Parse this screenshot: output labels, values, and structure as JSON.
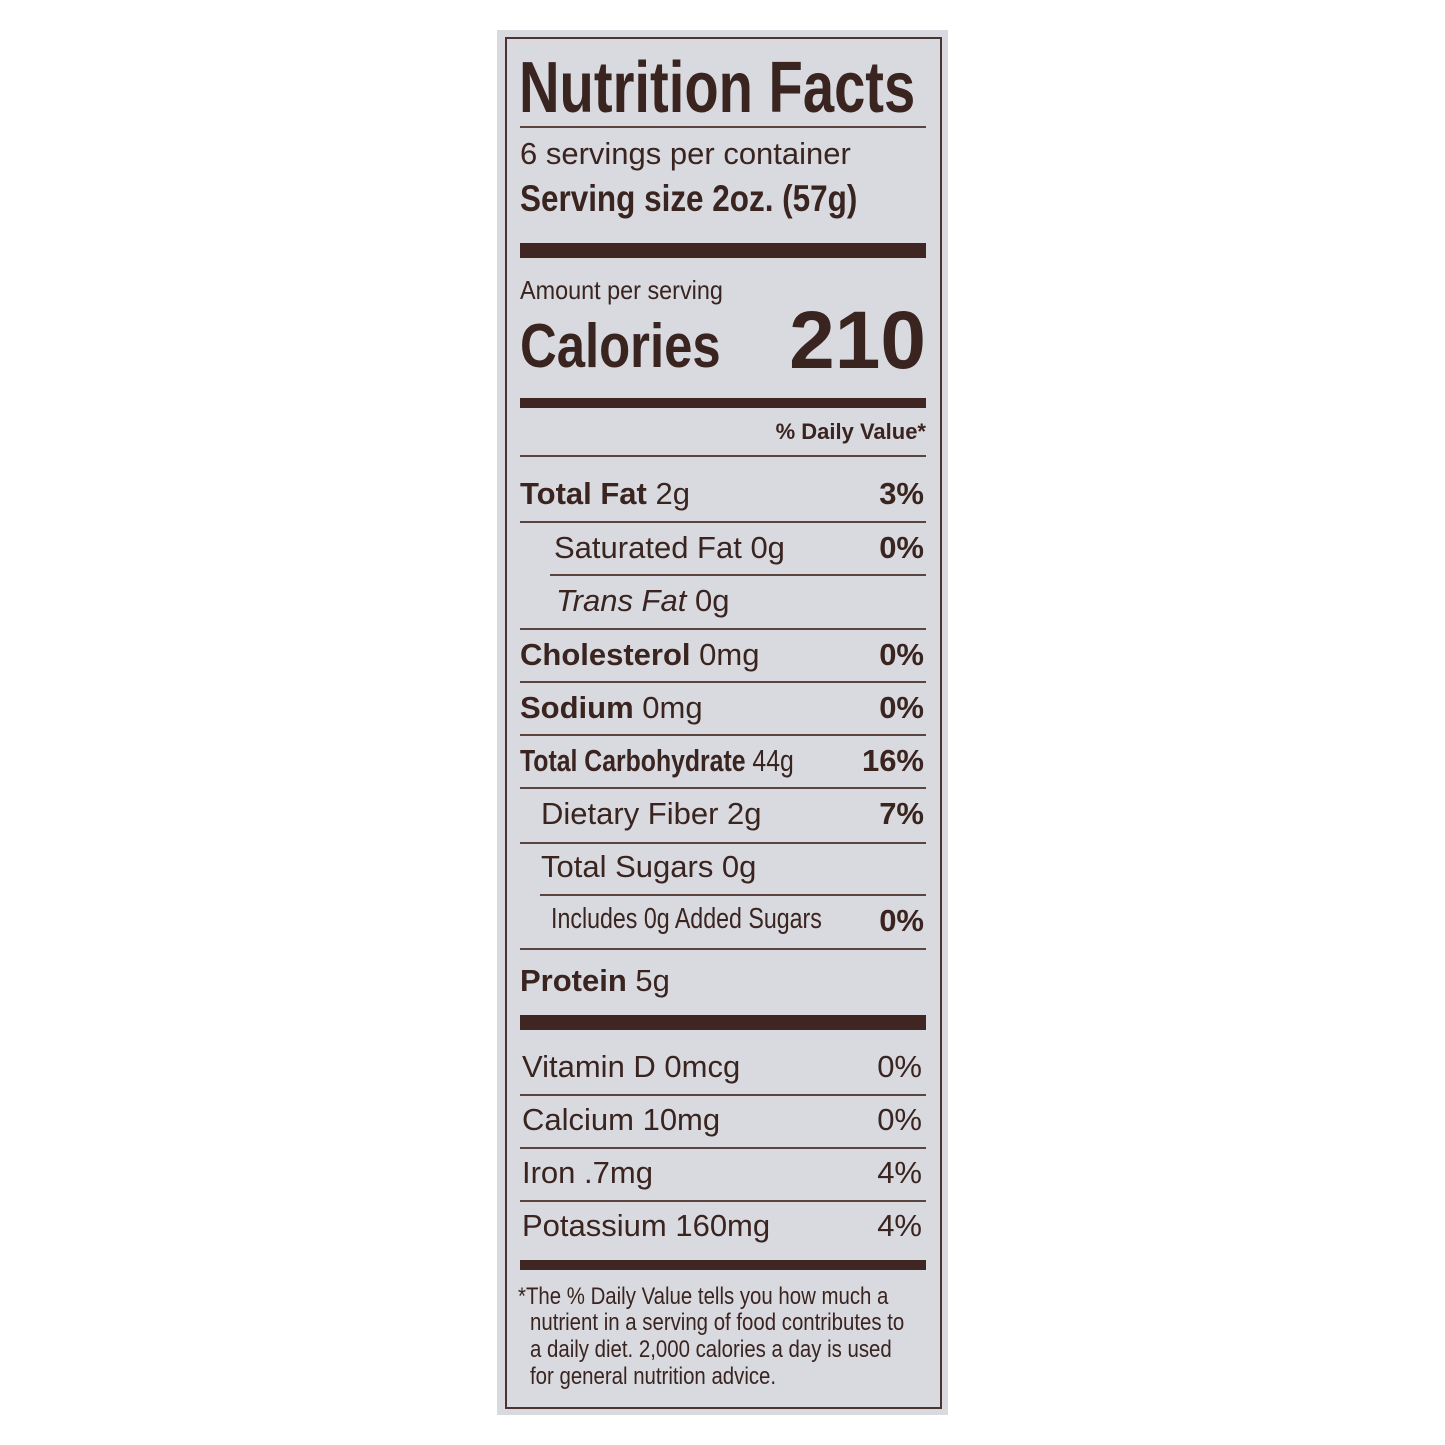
{
  "title": "Nutrition Facts",
  "servings_per_container": "6 servings per container",
  "serving_size": "Serving size 2oz. (57g)",
  "amount_per_serving": "Amount per serving",
  "calories_label": "Calories",
  "calories_value": "210",
  "daily_value_header": "% Daily Value*",
  "nutrients": [
    {
      "label": "Total Fat",
      "amount": "2g",
      "dv": "3%"
    },
    {
      "label": "Saturated Fat 0g",
      "dv": "0%"
    },
    {
      "label": "Trans Fat",
      "amount": "0g"
    },
    {
      "label": "Cholesterol",
      "amount": "0mg",
      "dv": "0%"
    },
    {
      "label": "Sodium",
      "amount": "0mg",
      "dv": "0%"
    },
    {
      "label": "Total Carbohydrate",
      "amount": "44g",
      "dv": "16%"
    },
    {
      "label": "Dietary Fiber 2g",
      "dv": "7%"
    },
    {
      "label": "Total Sugars 0g"
    },
    {
      "label": "Includes 0g Added Sugars",
      "dv": "0%"
    },
    {
      "label": "Protein",
      "amount": "5g"
    }
  ],
  "vitamins": [
    {
      "label": "Vitamin D 0mcg",
      "dv": "0%"
    },
    {
      "label": "Calcium 10mg",
      "dv": "0%"
    },
    {
      "label": "Iron .7mg",
      "dv": "4%"
    },
    {
      "label": "Potassium 160mg",
      "dv": "4%"
    }
  ],
  "footnote": [
    "*The % Daily Value tells you how much a",
    "nutrient in a serving of food contributes to",
    "a daily diet. 2,000 calories a day is used",
    "for general nutrition advice."
  ],
  "colors": {
    "ink": "#3a2420",
    "panel": "#d9dadf"
  }
}
